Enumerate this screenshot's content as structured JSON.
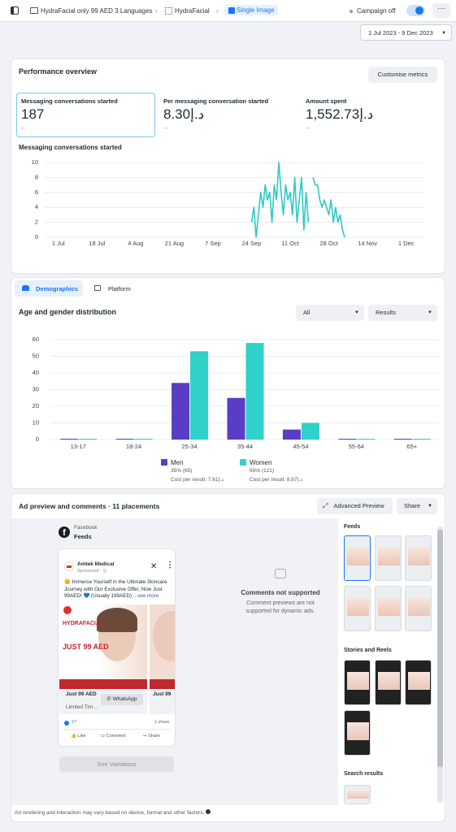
{
  "topbar": {
    "breadcrumb": [
      "HydraFacial only 99 AED 3 Languages",
      "HydraFacial",
      "Single Image"
    ],
    "campaign_status": "Campaign off"
  },
  "date_range": "1 Jul 2023 - 9 Dec 2023",
  "performance": {
    "title": "Performance overview",
    "button": "Customise metrics",
    "metrics": [
      {
        "label": "Messaging conversations started",
        "value": "187",
        "change": "--"
      },
      {
        "label": "Per messaging conversation started",
        "value": "8.30د.إ",
        "change": "--"
      },
      {
        "label": "Amount spent",
        "value": "1,552.73د.إ",
        "change": "--"
      }
    ]
  },
  "chart_data": [
    {
      "type": "line",
      "title": "Messaging conversations started",
      "color": "#2fc9c3",
      "x": [
        85,
        86,
        87,
        88,
        89,
        90,
        91,
        92,
        93,
        94,
        95,
        96,
        97,
        98,
        99,
        100,
        101,
        102,
        103,
        104,
        105,
        106,
        107,
        108,
        109,
        110,
        111,
        112,
        113,
        114,
        115,
        116,
        117,
        118,
        119,
        120,
        121,
        122,
        123,
        124,
        125,
        126
      ],
      "values": [
        2,
        4,
        0,
        3,
        6,
        4,
        7,
        5,
        6,
        2,
        7,
        5,
        10,
        6,
        3,
        7,
        5,
        6,
        3,
        8,
        2,
        5,
        8,
        1,
        6,
        2,
        null,
        8,
        7,
        7,
        5,
        4,
        5,
        4,
        3,
        5,
        2,
        4,
        2,
        3,
        1,
        0
      ],
      "xlim": [
        -6,
        161
      ],
      "xticks": [
        {
          "value": 0,
          "label": "1 Jul"
        },
        {
          "value": 17,
          "label": "18 Jul"
        },
        {
          "value": 34,
          "label": "4 Aug"
        },
        {
          "value": 51,
          "label": "21 Aug"
        },
        {
          "value": 68,
          "label": "7 Sep"
        },
        {
          "value": 85,
          "label": "24 Sep"
        },
        {
          "value": 102,
          "label": "11 Oct"
        },
        {
          "value": 119,
          "label": "28 Oct"
        },
        {
          "value": 136,
          "label": "14 Nov"
        },
        {
          "value": 153,
          "label": "1 Dec"
        }
      ],
      "ylim": [
        0,
        10
      ],
      "yticks": [
        0,
        2,
        4,
        6,
        8,
        10
      ],
      "grid": true
    },
    {
      "type": "bar",
      "categories": [
        "13-17",
        "18-24",
        "25-34",
        "35-44",
        "45-54",
        "55-64",
        "65+"
      ],
      "series": [
        {
          "name": "Men",
          "color": "#5a3dc4",
          "values": [
            0,
            0,
            34,
            25,
            6,
            0,
            0
          ]
        },
        {
          "name": "Women",
          "color": "#2fd1c8",
          "values": [
            0,
            0,
            53,
            58,
            10,
            0,
            0
          ]
        }
      ],
      "ylim": [
        0,
        60
      ],
      "yticks": [
        0,
        10,
        20,
        30,
        40,
        50,
        60
      ],
      "grid": true
    }
  ],
  "demographics": {
    "tabs": [
      "Demographics",
      "Platform"
    ],
    "title": "Age and gender distribution",
    "filters": [
      "All",
      "Results"
    ],
    "legend_details": [
      {
        "share": "35% (65)",
        "cost": "Cost per result: 7.61د.إ"
      },
      {
        "share": "65% (121)",
        "cost": "Cost per result: 8.67د.إ"
      }
    ]
  },
  "ad_preview": {
    "title": "Ad preview and comments · 11 placements",
    "buttons": [
      "Advanced Preview",
      "Share"
    ],
    "platform": "Facebook",
    "placement": "Feeds",
    "post": {
      "page": "Amtek Medical",
      "sponsored": "Sponsored · ",
      "text": "😊 Immerse Yourself in the Ultimate Skincare Journey with Our Exclusive Offer, Now Just 99AED! 💙 (Usually 199AED)",
      "see_more": "...see more",
      "image_brand": "HYDRAFACIAL",
      "image_price": "JUST 99 AED",
      "headline": "Just 99 AED",
      "cta": "WhatsApp",
      "description": "Limited Tim...",
      "headline_2": "Just 99",
      "reactions": "27",
      "shares": "1 share",
      "actions": [
        "Like",
        "Comment",
        "Share"
      ]
    },
    "variations_button": "See Variations",
    "comments_title": "Comments not supported",
    "comments_text": "Comment previews are not supported for dynamic ads.",
    "sections": [
      "Feeds",
      "Stories and Reels",
      "Search results"
    ],
    "footer": "Ad rendering and interaction may vary based on device, format and other factors."
  }
}
